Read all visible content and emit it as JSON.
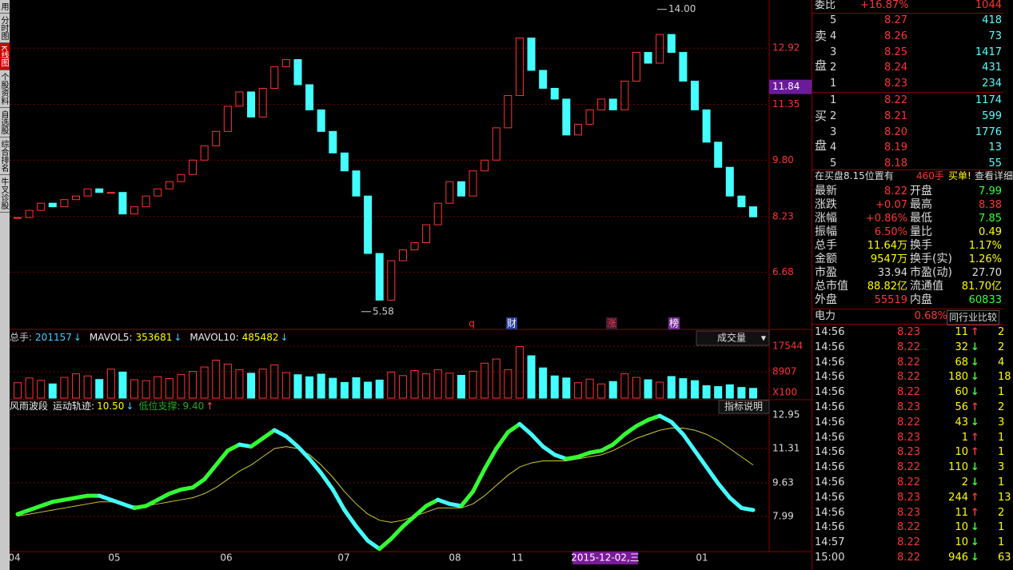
{
  "sidebar_tabs": [
    "用",
    "分时图",
    "K线图",
    "个股资料",
    "自选股",
    "综合排名",
    "牛叉诊股"
  ],
  "price_chart": {
    "type": "candlestick",
    "closes": [
      8.2,
      8.4,
      8.6,
      8.5,
      8.7,
      8.8,
      9.0,
      8.9,
      8.9,
      8.3,
      8.5,
      8.8,
      9.0,
      9.2,
      9.4,
      9.8,
      10.2,
      10.6,
      11.3,
      11.7,
      11.0,
      11.8,
      12.4,
      12.6,
      11.9,
      11.2,
      10.6,
      10.0,
      9.5,
      8.8,
      7.2,
      5.9,
      7.0,
      7.3,
      7.5,
      8.0,
      8.6,
      9.2,
      8.8,
      9.5,
      9.8,
      10.7,
      11.6,
      13.2,
      12.3,
      11.8,
      11.5,
      10.5,
      10.8,
      11.2,
      11.5,
      11.2,
      12.0,
      12.8,
      12.5,
      13.3,
      12.8,
      12.0,
      11.2,
      10.3,
      9.6,
      8.8,
      8.5,
      8.22
    ],
    "ylim": [
      5.13,
      14.26
    ],
    "yticks": [
      6.68,
      8.23,
      {
        "value": 9.8,
        "label": "9.80"
      },
      11.35,
      12.92
    ],
    "cursor_price": 11.84,
    "high_label": {
      "value": 14,
      "label": "14.00"
    },
    "low_label": 5.58,
    "events": [
      "q",
      "财",
      "涨",
      "榜"
    ]
  },
  "volume_chart": {
    "type": "bar",
    "header": [
      {
        "label": "总手:",
        "value": 201157,
        "arrow": "↓"
      },
      {
        "label": "MAVOL5:",
        "value": 353681,
        "arrow": "↓"
      },
      {
        "label": "MAVOL10:",
        "value": 485482,
        "arrow": "↓"
      }
    ],
    "selector": "成交量",
    "selector_arrow": "▼",
    "values": [
      5200,
      6800,
      6000,
      4800,
      7000,
      8200,
      7500,
      6300,
      9800,
      8800,
      6200,
      5900,
      7200,
      6600,
      8000,
      9000,
      10500,
      12800,
      11500,
      9600,
      8400,
      9800,
      11200,
      8600,
      7900,
      7200,
      8100,
      6700,
      5300,
      6900,
      5400,
      6100,
      8800,
      7600,
      9300,
      8200,
      9600,
      8400,
      7700,
      9100,
      11800,
      13200,
      9600,
      17400,
      14300,
      10200,
      7500,
      6800,
      5200,
      6400,
      4800,
      5600,
      8200,
      7000,
      6200,
      5400,
      7300,
      6600,
      5900,
      4200,
      3900,
      4500,
      3600,
      3300
    ],
    "ylim": [
      0,
      19700
    ],
    "yticks": [
      8907,
      17544
    ],
    "unit": "X100"
  },
  "indicator_chart": {
    "type": "line",
    "title": "风雨波段",
    "header": [
      {
        "label": "运动轨迹:",
        "value": {
          "value": 10.5,
          "label": "10.50"
        },
        "arrow": "↓"
      },
      {
        "label": "低位支撑:",
        "value": {
          "value": 9.4,
          "label": "9.40"
        },
        "arrow": "↑"
      }
    ],
    "button": "指标说明",
    "trajectory": [
      8.1,
      8.3,
      8.5,
      8.7,
      8.8,
      8.9,
      9.0,
      9.0,
      8.8,
      8.6,
      8.4,
      8.5,
      8.8,
      9.1,
      9.3,
      9.4,
      9.8,
      10.5,
      11.2,
      11.5,
      11.4,
      11.8,
      12.2,
      11.9,
      11.4,
      10.8,
      10.1,
      9.3,
      8.3,
      7.5,
      6.8,
      6.4,
      6.9,
      7.5,
      8.0,
      8.5,
      8.8,
      8.6,
      8.5,
      9.2,
      10.3,
      11.3,
      12.1,
      12.5,
      12.0,
      11.4,
      11.0,
      10.8,
      10.9,
      11.1,
      11.2,
      11.5,
      12.0,
      12.4,
      12.7,
      12.9,
      12.6,
      12.0,
      11.2,
      10.4,
      9.6,
      8.9,
      8.4,
      8.3
    ],
    "trend": [
      8.0,
      8.1,
      8.2,
      8.3,
      8.4,
      8.5,
      8.6,
      8.7,
      8.7,
      8.6,
      8.5,
      8.5,
      8.6,
      8.7,
      8.8,
      8.9,
      9.1,
      9.4,
      9.8,
      10.2,
      10.5,
      10.9,
      11.3,
      11.4,
      11.3,
      11.0,
      10.5,
      9.9,
      9.2,
      8.6,
      8.1,
      7.8,
      7.7,
      7.8,
      8.0,
      8.2,
      8.4,
      8.4,
      8.4,
      8.6,
      9.0,
      9.5,
      10.0,
      10.4,
      10.6,
      10.7,
      10.7,
      10.7,
      10.8,
      10.9,
      11.0,
      11.2,
      11.5,
      11.8,
      12.0,
      12.2,
      12.3,
      12.3,
      12.2,
      12.0,
      11.7,
      11.3,
      10.9,
      10.5
    ],
    "ylim": [
      6.27,
      13.57
    ],
    "yticks": [
      7.99,
      9.63,
      11.31,
      12.95
    ]
  },
  "x_axis": {
    "labels": [
      "04",
      "05",
      "06",
      "07",
      "08",
      "11",
      "01"
    ],
    "cursor_date": "2015-12-02,三"
  },
  "quote": {
    "ratio": {
      "label": "委比",
      "value": "+16.87%",
      "volume": "1044"
    },
    "ask_label": "卖盘",
    "bid_label": "买盘",
    "asks": [
      [
        "5",
        "8.27",
        "418"
      ],
      [
        "4",
        "8.26",
        "73"
      ],
      [
        "3",
        "8.25",
        "1417"
      ],
      [
        "2",
        "8.24",
        "431"
      ],
      [
        "1",
        "8.23",
        "234"
      ]
    ],
    "bids": [
      [
        "1",
        "8.22",
        "1174"
      ],
      [
        "2",
        "8.21",
        "599"
      ],
      [
        "3",
        "8.20",
        "1776"
      ],
      [
        "4",
        "8.19",
        "13"
      ],
      [
        "5",
        "8.18",
        "55"
      ]
    ],
    "notice": {
      "text": "在买盘8.15位置有",
      "qty": "460手",
      "action": "买单!",
      "link": "查看详细"
    },
    "stats": [
      [
        "最新",
        "8.22",
        "开盘",
        "7.99"
      ],
      [
        "涨跌",
        "+0.07",
        "最高",
        "8.38"
      ],
      [
        "涨幅",
        "+0.86%",
        "最低",
        "7.85"
      ],
      [
        "振幅",
        "6.50%",
        "量比",
        "0.49"
      ],
      [
        "总手",
        "11.64万",
        "换手",
        "1.17%"
      ],
      [
        "金额",
        "9547万",
        "换手(实)",
        "1.26%"
      ],
      [
        "市盈",
        "33.94",
        "市盈(动)",
        "27.70"
      ],
      [
        "总市值",
        "88.82亿",
        "流通值",
        "81.70亿"
      ],
      [
        "外盘",
        "55519",
        "内盘",
        "60833"
      ]
    ],
    "sector": {
      "name": "电力",
      "change": "0.68%",
      "button": "同行业比较"
    },
    "trades": [
      [
        "14:56",
        "8.23",
        "11",
        "↑",
        "2"
      ],
      [
        "14:56",
        "8.22",
        "32",
        "↓",
        "2"
      ],
      [
        "14:56",
        "8.22",
        "68",
        "↓",
        "4"
      ],
      [
        "14:56",
        "8.22",
        "180",
        "↓",
        "18"
      ],
      [
        "14:56",
        "8.22",
        "60",
        "↓",
        "1"
      ],
      [
        "14:56",
        "8.23",
        "56",
        "↑",
        "2"
      ],
      [
        "14:56",
        "8.22",
        "43",
        "↓",
        "3"
      ],
      [
        "14:56",
        "8.23",
        "1",
        "↑",
        "1"
      ],
      [
        "14:56",
        "8.23",
        "10",
        "↑",
        "1"
      ],
      [
        "14:56",
        "8.22",
        "110",
        "↓",
        "3"
      ],
      [
        "14:56",
        "8.22",
        "2",
        "↓",
        "1"
      ],
      [
        "14:56",
        "8.23",
        "244",
        "↑",
        "13"
      ],
      [
        "14:56",
        "8.23",
        "11",
        "↑",
        "2"
      ],
      [
        "14:56",
        "8.22",
        "10",
        "↓",
        "1"
      ],
      [
        "14:57",
        "8.22",
        "10",
        "↓",
        "1"
      ],
      [
        "15:00",
        "8.22",
        "946",
        "↓",
        "63"
      ]
    ]
  }
}
